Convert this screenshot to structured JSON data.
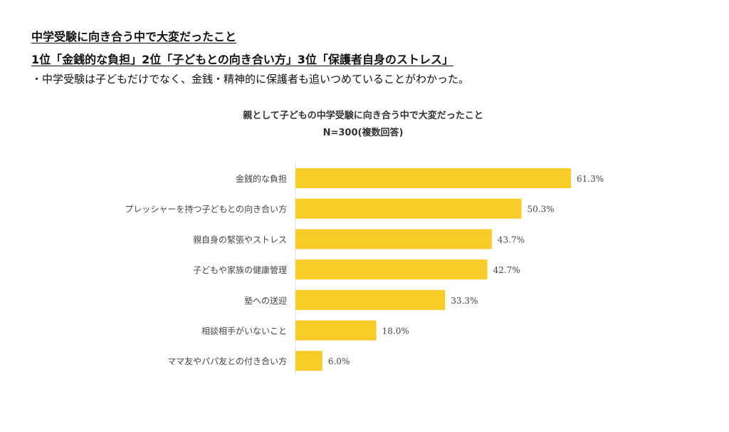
{
  "header": {
    "title": "中学受験に向き合う中で大変だったこと",
    "ranking": "1位「金銭的な負担」2位「子どもとの向き合い方」3位「保護者自身のストレス」",
    "note": "・中学受験は子どもだけでなく、金銭・精神的に保護者も追いつめていることがわかった。"
  },
  "colors": {
    "bar": "#F9CB28",
    "axis": "#dddddd",
    "text": "#444444"
  },
  "chart_data": {
    "type": "bar",
    "orientation": "horizontal",
    "title": "親として子どもの中学受験に向き合う中で大変だったこと",
    "subtitle": "N=300(複数回答)",
    "categories": [
      "金銭的な負担",
      "プレッシャーを持つ子どもとの向き合い方",
      "親自身の緊張やストレス",
      "子どもや家族の健康管理",
      "塾への送迎",
      "相談相手がいないこと",
      "ママ友やパパ友との付き合い方"
    ],
    "values": [
      61.3,
      50.3,
      43.7,
      42.7,
      33.3,
      18.0,
      6.0
    ],
    "labels": [
      "61.3%",
      "50.3%",
      "43.7%",
      "42.7%",
      "33.3%",
      "18.0%",
      "6.0%"
    ],
    "unit": "%",
    "xlim": [
      0,
      70
    ],
    "grid": false,
    "legend": "none"
  }
}
